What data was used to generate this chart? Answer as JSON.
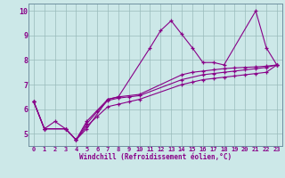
{
  "xlabel": "Windchill (Refroidissement éolien,°C)",
  "background_color": "#cce8e8",
  "line_color": "#880088",
  "grid_color": "#99bbbb",
  "xlim": [
    -0.5,
    23.5
  ],
  "ylim": [
    4.5,
    10.3
  ],
  "xticks": [
    0,
    1,
    2,
    3,
    4,
    5,
    6,
    7,
    8,
    9,
    10,
    11,
    12,
    13,
    14,
    15,
    16,
    17,
    18,
    19,
    20,
    21,
    22,
    23
  ],
  "yticks": [
    5,
    6,
    7,
    8,
    9,
    10
  ],
  "series_jagged": [
    6.3,
    5.2,
    5.5,
    5.2,
    4.75,
    5.2,
    6.4,
    6.5,
    8.5,
    9.2,
    9.6,
    9.05,
    8.5,
    7.9,
    7.9,
    7.8,
    10.0,
    8.5,
    7.8
  ],
  "jagged_x": [
    0,
    1,
    2,
    3,
    4,
    5,
    7,
    8,
    11,
    12,
    13,
    14,
    15,
    16,
    17,
    18,
    21,
    22,
    23
  ],
  "series1_x": [
    0,
    1,
    3,
    4,
    5,
    7,
    8,
    10,
    14,
    15,
    16,
    17,
    18,
    19,
    20,
    21,
    22,
    23
  ],
  "series1_y": [
    6.3,
    5.2,
    5.2,
    4.75,
    5.5,
    6.4,
    6.5,
    6.6,
    7.4,
    7.5,
    7.55,
    7.6,
    7.65,
    7.68,
    7.7,
    7.72,
    7.75,
    7.8
  ],
  "series2_x": [
    0,
    1,
    3,
    4,
    5,
    6,
    7,
    8,
    9,
    10,
    14,
    16,
    17,
    18,
    19,
    20,
    21,
    22,
    23
  ],
  "series2_y": [
    6.3,
    5.2,
    5.2,
    4.75,
    5.4,
    5.9,
    6.35,
    6.45,
    6.5,
    6.55,
    7.2,
    7.4,
    7.45,
    7.5,
    7.55,
    7.6,
    7.65,
    7.7,
    7.8
  ],
  "series3_x": [
    0,
    1,
    3,
    4,
    5,
    6,
    7,
    8,
    9,
    10,
    14,
    15,
    16,
    17,
    18,
    19,
    20,
    21,
    22,
    23
  ],
  "series3_y": [
    6.3,
    5.2,
    5.2,
    4.75,
    5.3,
    5.7,
    6.1,
    6.2,
    6.3,
    6.4,
    7.0,
    7.1,
    7.2,
    7.25,
    7.3,
    7.35,
    7.4,
    7.45,
    7.5,
    7.8
  ]
}
